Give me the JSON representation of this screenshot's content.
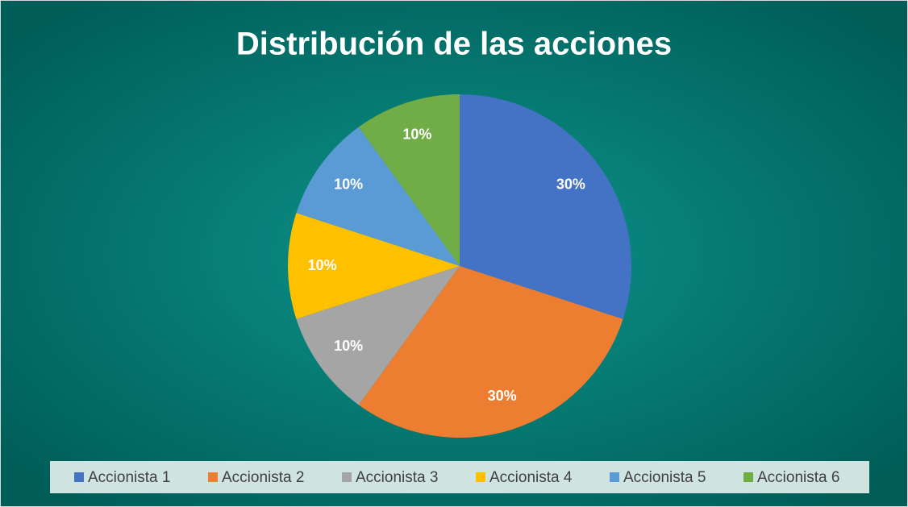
{
  "chart_data": {
    "type": "pie",
    "title": "Distribución de las acciones",
    "categories": [
      "Accionista 1",
      "Accionista 2",
      "Accionista 3",
      "Accionista 4",
      "Accionista 5",
      "Accionista 6"
    ],
    "values": [
      30,
      30,
      10,
      10,
      10,
      10
    ],
    "value_labels": [
      "30%",
      "30%",
      "10%",
      "10%",
      "10%",
      "10%"
    ],
    "colors": [
      "#4472c4",
      "#ed7d31",
      "#a5a5a5",
      "#ffc000",
      "#5b9bd5",
      "#70ad47"
    ],
    "legend": "bottom"
  }
}
